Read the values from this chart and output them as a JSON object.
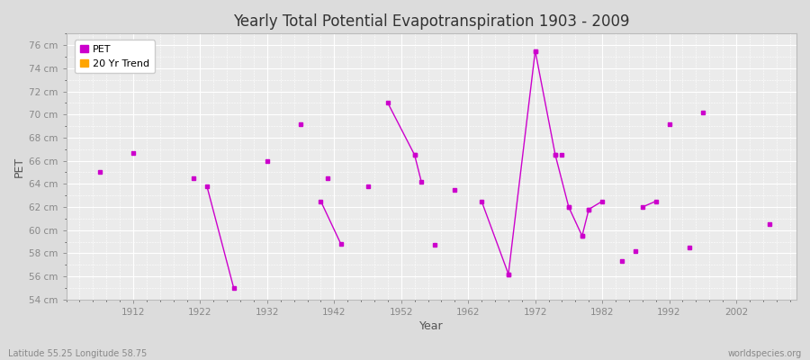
{
  "title": "Yearly Total Potential Evapotranspiration 1903 - 2009",
  "xlabel": "Year",
  "ylabel": "PET",
  "xlabel_bottom": "Latitude 55.25 Longitude 58.75",
  "watermark": "worldspecies.org",
  "ylim": [
    54,
    77
  ],
  "yticks": [
    54,
    56,
    58,
    60,
    62,
    64,
    66,
    68,
    70,
    72,
    74,
    76
  ],
  "ytick_labels": [
    "54 cm",
    "56 cm",
    "58 cm",
    "60 cm",
    "62 cm",
    "64 cm",
    "66 cm",
    "68 cm",
    "70 cm",
    "72 cm",
    "74 cm",
    "76 cm"
  ],
  "xlim": [
    1902,
    2011
  ],
  "xticks": [
    1912,
    1922,
    1932,
    1942,
    1952,
    1962,
    1972,
    1982,
    1992,
    2002
  ],
  "pet_color": "#CC00CC",
  "trend_color": "#FFA500",
  "background_color": "#DCDCDC",
  "plot_bg_color": "#EBEBEB",
  "grid_color": "#FFFFFF",
  "legend_items": [
    "PET",
    "20 Yr Trend"
  ],
  "legend_colors": [
    "#CC00CC",
    "#FFA500"
  ],
  "segments": [
    [
      [
        1923,
        1927
      ],
      [
        63.8,
        55.0
      ]
    ],
    [
      [
        1940,
        1943
      ],
      [
        62.5,
        58.8
      ]
    ],
    [
      [
        1950,
        1954
      ],
      [
        71.0,
        66.5
      ]
    ],
    [
      [
        1954,
        1955
      ],
      [
        66.5,
        64.2
      ]
    ],
    [
      [
        1964,
        1968
      ],
      [
        62.5,
        56.2
      ]
    ],
    [
      [
        1968,
        1972
      ],
      [
        56.2,
        75.5
      ]
    ],
    [
      [
        1972,
        1975
      ],
      [
        75.5,
        66.5
      ]
    ],
    [
      [
        1975,
        1977
      ],
      [
        66.5,
        62.0
      ]
    ],
    [
      [
        1977,
        1979
      ],
      [
        62.0,
        59.5
      ]
    ],
    [
      [
        1979,
        1980
      ],
      [
        59.5,
        61.8
      ]
    ],
    [
      [
        1980,
        1982
      ],
      [
        61.8,
        62.5
      ]
    ],
    [
      [
        1988,
        1990
      ],
      [
        62.0,
        62.5
      ]
    ]
  ],
  "isolated_points": [
    [
      1907,
      65.0
    ],
    [
      1912,
      66.7
    ],
    [
      1921,
      64.5
    ],
    [
      1932,
      66.0
    ],
    [
      1937,
      69.2
    ],
    [
      1941,
      64.5
    ],
    [
      1947,
      63.8
    ],
    [
      1957,
      58.7
    ],
    [
      1960,
      63.5
    ],
    [
      1976,
      66.5
    ],
    [
      1985,
      57.3
    ],
    [
      1987,
      58.2
    ],
    [
      1992,
      69.2
    ],
    [
      1995,
      58.5
    ],
    [
      1997,
      70.2
    ],
    [
      2007,
      60.5
    ]
  ]
}
